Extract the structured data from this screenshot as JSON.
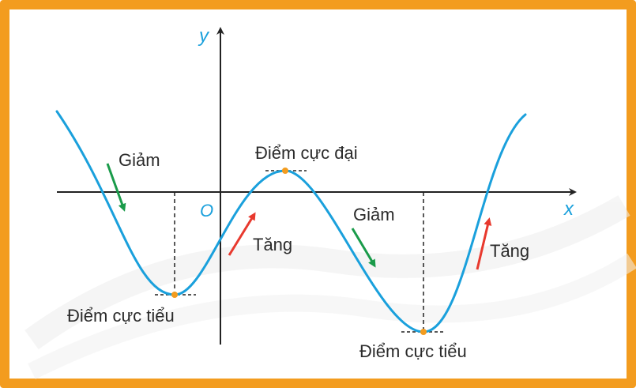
{
  "axes": {
    "x_label": "x",
    "y_label": "y",
    "origin_label": "O"
  },
  "labels": {
    "decrease_1": "Giảm",
    "decrease_2": "Giảm",
    "increase_1": "Tăng",
    "increase_2": "Tăng",
    "local_max": "Điểm cực đại",
    "local_min_1": "Điểm cực tiểu",
    "local_min_2": "Điểm cực tiểu"
  },
  "colors": {
    "frame": "#f39c1f",
    "curve": "#1aa0dc",
    "axis": "#222222",
    "point": "#f39c1f",
    "decrease_arrow": "#1a9b4a",
    "increase_arrow": "#e8392e",
    "watermark": "#eeeeee"
  }
}
